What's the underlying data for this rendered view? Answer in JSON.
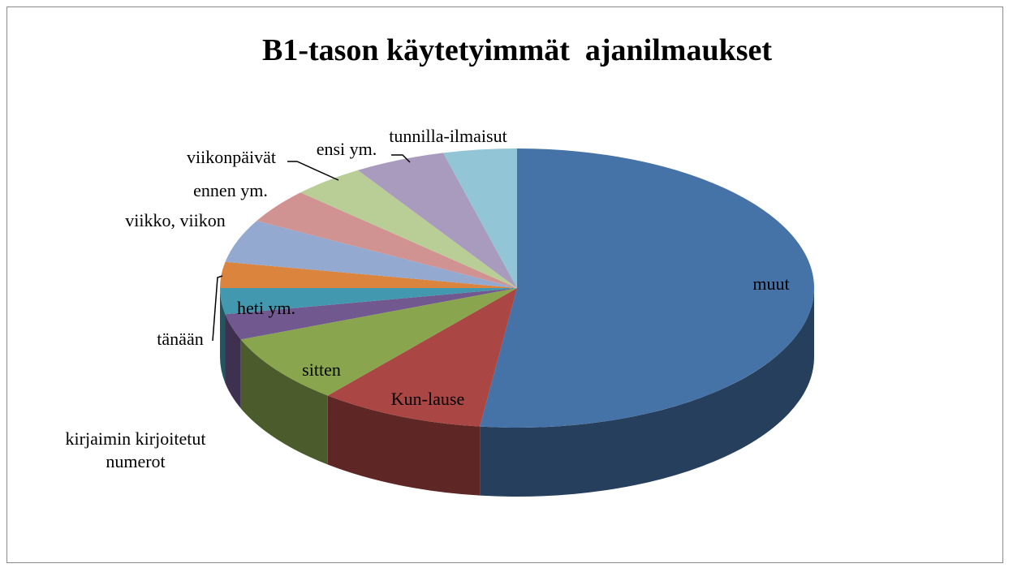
{
  "chart_data": {
    "type": "pie",
    "title": "B1-tason käytetyimmät  ajanilmaukset",
    "categories": [
      "muut",
      "Kun-lause",
      "sitten",
      "kirjaimin kirjoitetut numerot",
      "heti ym.",
      "tänään",
      "viikko, viikon",
      "ennen ym.",
      "viikonpäivät",
      "ensi ym.",
      "tunnilla-ilmaisut"
    ],
    "values": [
      52,
      9,
      8,
      3,
      3,
      3,
      5,
      4,
      4,
      5,
      4
    ],
    "colors": [
      "#4572a7",
      "#aa4643",
      "#89a54e",
      "#71588f",
      "#4198af",
      "#db843d",
      "#93a9cf",
      "#d19392",
      "#b9cd96",
      "#a99bbd",
      "#92c5d6"
    ]
  }
}
